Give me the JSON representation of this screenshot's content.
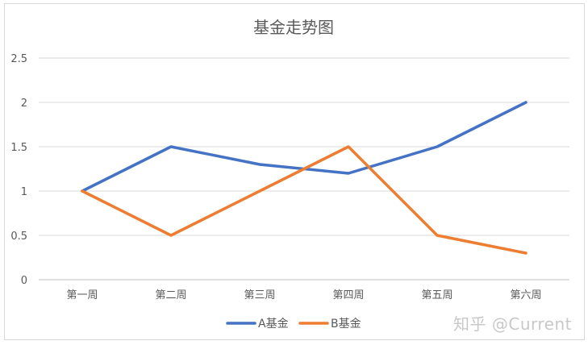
{
  "chart_data": {
    "type": "line",
    "title": "基金走势图",
    "categories": [
      "第一周",
      "第二周",
      "第三周",
      "第四周",
      "第五周",
      "第六周"
    ],
    "series": [
      {
        "name": "A基金",
        "values": [
          1,
          1.5,
          1.3,
          1.2,
          1.5,
          2
        ],
        "color": "#4472C4"
      },
      {
        "name": "B基金",
        "values": [
          1,
          0.5,
          1,
          1.5,
          0.5,
          0.3
        ],
        "color": "#ED7D31"
      }
    ],
    "y_ticks": [
      "0",
      "0.5",
      "1",
      "1.5",
      "2",
      "2.5"
    ],
    "ylim": [
      0,
      2.5
    ],
    "grid": true,
    "legend": "bottom"
  },
  "watermark": "知乎 @Current"
}
